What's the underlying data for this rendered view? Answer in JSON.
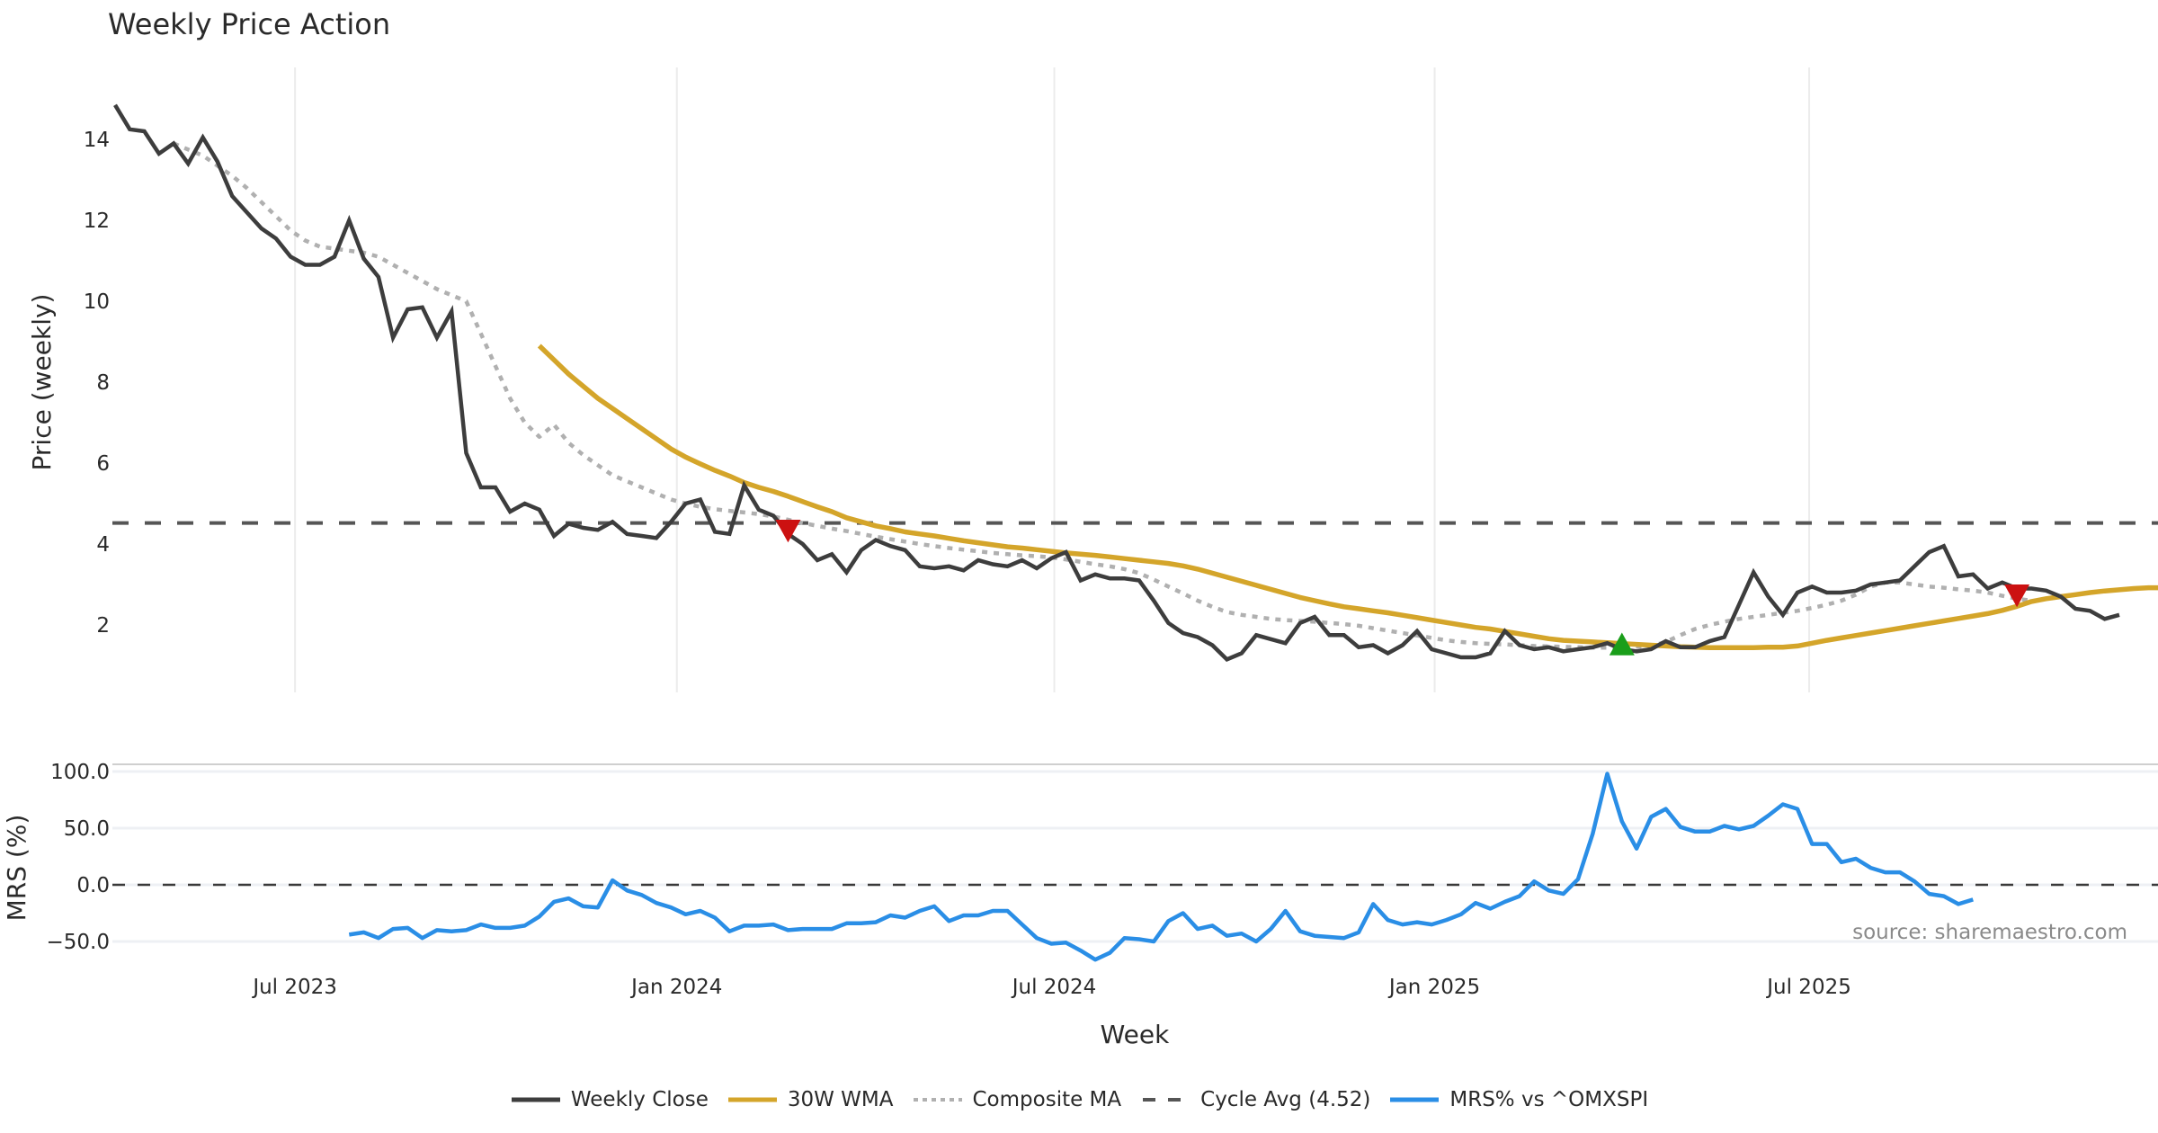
{
  "chart_data": [
    {
      "type": "line",
      "title": "Weekly Price Action",
      "xlabel": "",
      "ylabel": "Price (weekly)",
      "ylim": [
        0.2,
        15.5
      ],
      "yticks": [
        2,
        4,
        6,
        8,
        10,
        12,
        14
      ],
      "x_tick_labels": [
        "Jul 2023",
        "Jan 2024",
        "Jul 2024",
        "Jan 2025",
        "Jul 2025"
      ],
      "x_tick_weeks": [
        12.3,
        38.4,
        64.2,
        90.2,
        115.8
      ],
      "x_range_weeks": [
        0,
        134
      ],
      "grid": "vertical",
      "reference_line": {
        "name": "Cycle Avg (4.52)",
        "value": 4.52
      },
      "series": [
        {
          "name": "Weekly Close",
          "start_week": 0,
          "values": [
            14.85,
            14.25,
            14.2,
            13.65,
            13.9,
            13.4,
            14.05,
            13.45,
            12.6,
            12.2,
            11.8,
            11.55,
            11.1,
            10.9,
            10.9,
            11.1,
            12.0,
            11.05,
            10.6,
            9.1,
            9.8,
            9.85,
            9.1,
            9.75,
            6.25,
            5.4,
            5.4,
            4.8,
            5.0,
            4.85,
            4.2,
            4.5,
            4.4,
            4.35,
            4.55,
            4.25,
            4.2,
            4.15,
            4.55,
            5.0,
            5.1,
            4.3,
            4.25,
            5.45,
            4.85,
            4.7,
            4.25,
            4.0,
            3.6,
            3.75,
            3.3,
            3.85,
            4.1,
            3.95,
            3.85,
            3.45,
            3.4,
            3.45,
            3.35,
            3.6,
            3.5,
            3.45,
            3.6,
            3.4,
            3.65,
            3.8,
            3.1,
            3.25,
            3.15,
            3.15,
            3.1,
            2.6,
            2.05,
            1.8,
            1.7,
            1.5,
            1.15,
            1.3,
            1.75,
            1.65,
            1.55,
            2.05,
            2.2,
            1.75,
            1.75,
            1.45,
            1.5,
            1.3,
            1.5,
            1.85,
            1.4,
            1.3,
            1.2,
            1.2,
            1.3,
            1.85,
            1.5,
            1.4,
            1.45,
            1.35,
            1.4,
            1.45,
            1.55,
            1.4,
            1.35,
            1.4,
            1.6,
            1.45,
            1.45,
            1.6,
            1.7,
            2.5,
            3.3,
            2.7,
            2.25,
            2.8,
            2.95,
            2.8,
            2.8,
            2.85,
            3.0,
            3.05,
            3.1,
            3.45,
            3.8,
            3.95,
            3.2,
            3.25,
            2.9,
            3.05,
            2.9,
            2.9,
            2.85,
            2.7,
            2.4,
            2.35,
            2.15,
            2.25
          ]
        },
        {
          "name": "30W WMA",
          "start_week": 29,
          "values": [
            8.9,
            8.55,
            8.2,
            7.9,
            7.6,
            7.35,
            7.1,
            6.85,
            6.6,
            6.35,
            6.15,
            5.98,
            5.82,
            5.68,
            5.52,
            5.4,
            5.3,
            5.18,
            5.05,
            4.92,
            4.8,
            4.65,
            4.55,
            4.45,
            4.38,
            4.3,
            4.25,
            4.2,
            4.14,
            4.08,
            4.03,
            3.98,
            3.93,
            3.9,
            3.86,
            3.82,
            3.78,
            3.75,
            3.72,
            3.68,
            3.64,
            3.6,
            3.56,
            3.52,
            3.46,
            3.38,
            3.28,
            3.18,
            3.08,
            2.98,
            2.88,
            2.78,
            2.68,
            2.6,
            2.52,
            2.45,
            2.4,
            2.35,
            2.3,
            2.24,
            2.18,
            2.12,
            2.06,
            2.0,
            1.94,
            1.9,
            1.84,
            1.78,
            1.72,
            1.66,
            1.62,
            1.6,
            1.58,
            1.56,
            1.54,
            1.52,
            1.5,
            1.48,
            1.46,
            1.45,
            1.44,
            1.44,
            1.44,
            1.44,
            1.45,
            1.45,
            1.48,
            1.55,
            1.62,
            1.68,
            1.74,
            1.8,
            1.86,
            1.92,
            1.98,
            2.04,
            2.1,
            2.16,
            2.22,
            2.28,
            2.36,
            2.46,
            2.58,
            2.65,
            2.7,
            2.75,
            2.8,
            2.84,
            2.87,
            2.9,
            2.92,
            2.92,
            2.9,
            2.88,
            2.85
          ]
        },
        {
          "name": "Composite MA",
          "start_week": 4,
          "values": [
            13.9,
            13.75,
            13.6,
            13.35,
            13.1,
            12.8,
            12.45,
            12.1,
            11.75,
            11.5,
            11.35,
            11.3,
            11.25,
            11.2,
            11.1,
            10.9,
            10.7,
            10.5,
            10.3,
            10.15,
            10.0,
            9.2,
            8.4,
            7.6,
            7.0,
            6.65,
            6.95,
            6.5,
            6.2,
            5.95,
            5.7,
            5.55,
            5.4,
            5.25,
            5.1,
            5.0,
            4.92,
            4.86,
            4.82,
            4.78,
            4.74,
            4.68,
            4.6,
            4.52,
            4.45,
            4.38,
            4.32,
            4.25,
            4.18,
            4.12,
            4.06,
            4.0,
            3.95,
            3.9,
            3.86,
            3.82,
            3.78,
            3.75,
            3.72,
            3.7,
            3.67,
            3.62,
            3.56,
            3.5,
            3.45,
            3.38,
            3.28,
            3.12,
            2.95,
            2.78,
            2.6,
            2.45,
            2.32,
            2.25,
            2.2,
            2.15,
            2.12,
            2.1,
            2.08,
            2.05,
            2.02,
            1.98,
            1.92,
            1.86,
            1.8,
            1.74,
            1.68,
            1.62,
            1.58,
            1.55,
            1.53,
            1.52,
            1.5,
            1.48,
            1.47,
            1.46,
            1.45,
            1.44,
            1.44,
            1.44,
            1.46,
            1.48,
            1.58,
            1.75,
            1.9,
            2.0,
            2.08,
            2.15,
            2.2,
            2.25,
            2.3,
            2.35,
            2.42,
            2.5,
            2.6,
            2.75,
            2.95,
            3.05,
            3.05,
            3.0,
            2.95,
            2.92,
            2.88,
            2.85,
            2.8,
            2.72,
            2.65,
            2.6
          ]
        }
      ],
      "markers": [
        {
          "type": "sell",
          "shape": "triangle-down",
          "color": "#cc1111",
          "week": 46,
          "value": 4.35
        },
        {
          "type": "buy",
          "shape": "triangle-up",
          "color": "#1a9e1a",
          "week": 103,
          "value": 1.5
        },
        {
          "type": "sell",
          "shape": "triangle-down",
          "color": "#cc1111",
          "week": 130,
          "value": 2.75
        }
      ]
    },
    {
      "type": "line",
      "title": "",
      "xlabel": "Week",
      "ylabel": "MRS (%)",
      "ylim": [
        -70,
        110
      ],
      "yticks": [
        -50.0,
        0.0,
        50.0,
        100.0
      ],
      "ytick_labels": [
        "−50.0",
        "0.0",
        "50.0",
        "100.0"
      ],
      "reference_line": {
        "value": 0
      },
      "annotation": "source: sharemaestro.com",
      "series": [
        {
          "name": "MRS% vs ^OMXSPI",
          "start_week": 16,
          "values": [
            -44,
            -42,
            -47,
            -39,
            -38,
            -47,
            -40,
            -41,
            -40,
            -35,
            -38,
            -38,
            -36,
            -28,
            -15,
            -12,
            -19,
            -20,
            4,
            -5,
            -9,
            -16,
            -20,
            -26,
            -23,
            -29,
            -41,
            -36,
            -36,
            -35,
            -40,
            -39,
            -39,
            -39,
            -34,
            -34,
            -33,
            -27,
            -29,
            -23,
            -19,
            -32,
            -27,
            -27,
            -23,
            -23,
            -35,
            -47,
            -52,
            -51,
            -58,
            -66,
            -60,
            -47,
            -48,
            -50,
            -32,
            -25,
            -39,
            -36,
            -45,
            -43,
            -50,
            -39,
            -23,
            -41,
            -45,
            -46,
            -47,
            -42,
            -17,
            -31,
            -35,
            -33,
            -35,
            -31,
            -26,
            -16,
            -21,
            -15,
            -10,
            3,
            -5,
            -8,
            5,
            45,
            98,
            56,
            32,
            60,
            67,
            51,
            47,
            47,
            52,
            49,
            52,
            61,
            71,
            67,
            36,
            36,
            20,
            23,
            15,
            11,
            11,
            3,
            -8,
            -10,
            -17,
            -13
          ]
        }
      ]
    }
  ],
  "legend": [
    {
      "label": "Weekly Close",
      "style": "solid",
      "color": "#3d3d3d"
    },
    {
      "label": "30W WMA",
      "style": "solid",
      "color": "#d4a52a"
    },
    {
      "label": "Composite MA",
      "style": "dotted",
      "color": "#b0b0b0"
    },
    {
      "label": "Cycle Avg (4.52)",
      "style": "dashed",
      "color": "#555555"
    },
    {
      "label": "MRS% vs ^OMXSPI",
      "style": "solid",
      "color": "#2a8ee6"
    }
  ],
  "colors": {
    "close": "#3d3d3d",
    "wma": "#d4a52a",
    "composite": "#b0b0b0",
    "cycle": "#555555",
    "mrs": "#2a8ee6",
    "sell": "#cc1111",
    "buy": "#1a9e1a"
  }
}
